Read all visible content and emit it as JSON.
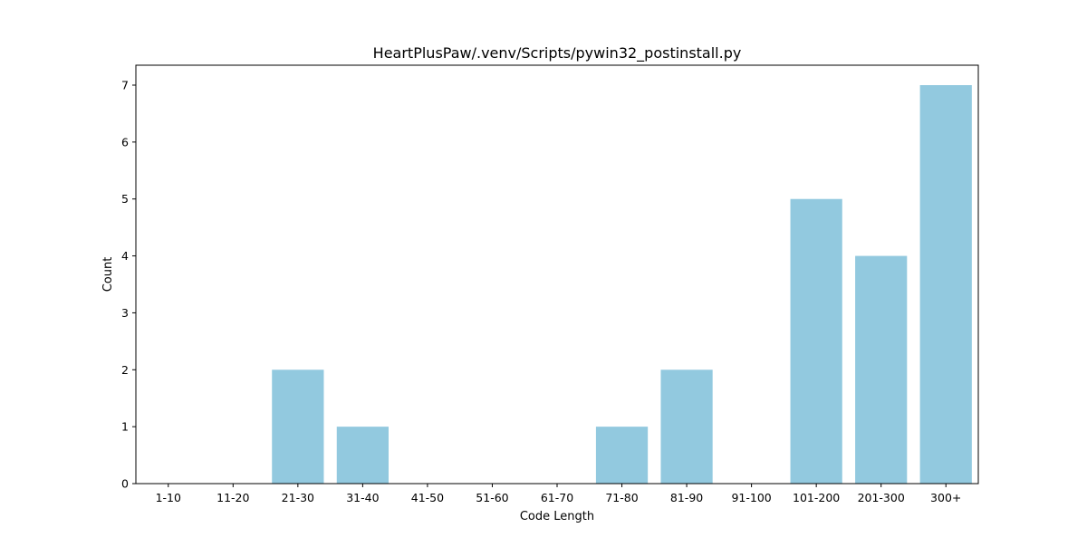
{
  "chart_data": {
    "type": "bar",
    "title": "HeartPlusPaw/.venv/Scripts/pywin32_postinstall.py",
    "xlabel": "Code Length",
    "ylabel": "Count",
    "categories": [
      "1-10",
      "11-20",
      "21-30",
      "31-40",
      "41-50",
      "51-60",
      "61-70",
      "71-80",
      "81-90",
      "91-100",
      "101-200",
      "201-300",
      "300+"
    ],
    "values": [
      0,
      0,
      2,
      1,
      0,
      0,
      0,
      1,
      2,
      0,
      5,
      4,
      7
    ],
    "ylim": [
      0,
      7.35
    ],
    "yticks": [
      0,
      1,
      2,
      3,
      4,
      5,
      6,
      7
    ],
    "bar_color": "#92c9df",
    "grid": false,
    "legend": "none"
  }
}
